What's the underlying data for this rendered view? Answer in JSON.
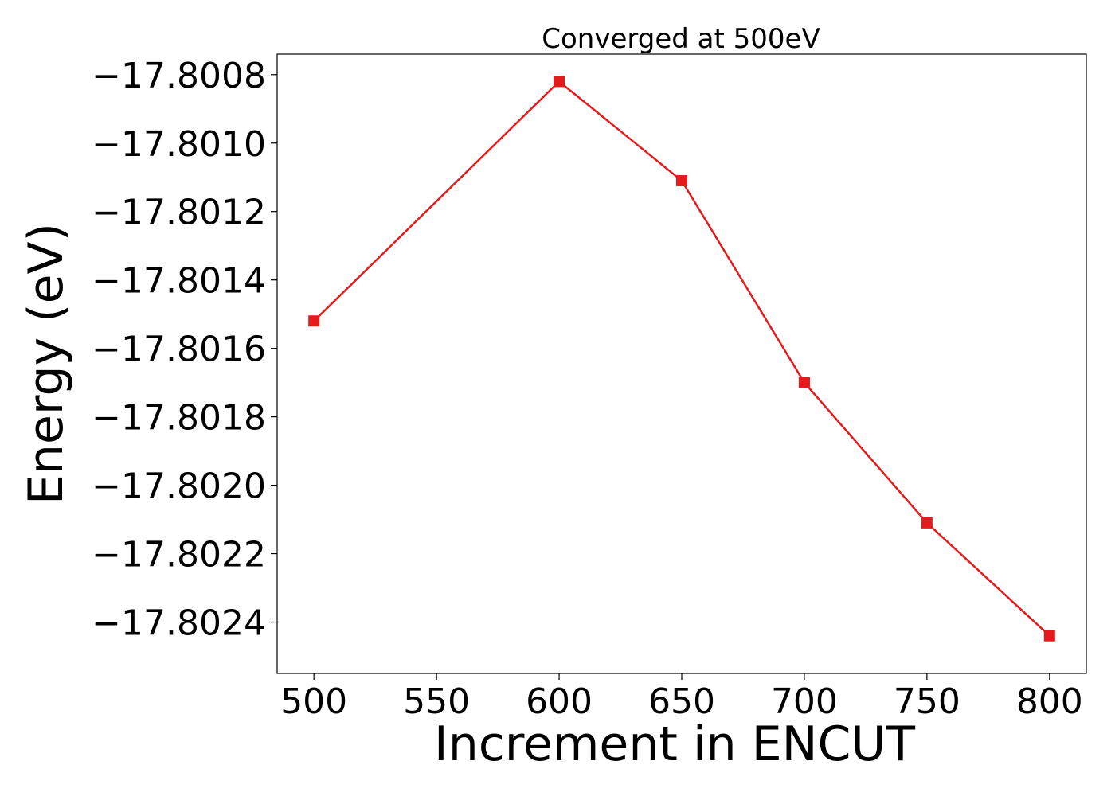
{
  "colors": {
    "series": "#e41a1c",
    "axis": "#000000",
    "background": "#ffffff"
  },
  "chart_data": {
    "type": "line",
    "title": "Converged at 500eV",
    "xlabel": "Increment in ENCUT",
    "ylabel": "Energy (eV)",
    "grid": false,
    "legend": "none",
    "marker": "square",
    "xlim": [
      485,
      815
    ],
    "ylim": [
      -17.80255,
      -17.80074
    ],
    "xticks": [
      500,
      550,
      600,
      650,
      700,
      750,
      800
    ],
    "xtick_labels": [
      "500",
      "550",
      "600",
      "650",
      "700",
      "750",
      "800"
    ],
    "yticks": [
      -17.8008,
      -17.801,
      -17.8012,
      -17.8014,
      -17.8016,
      -17.8018,
      -17.802,
      -17.8022,
      -17.8024
    ],
    "ytick_labels": [
      "−17.8008",
      "−17.8010",
      "−17.8012",
      "−17.8014",
      "−17.8016",
      "−17.8018",
      "−17.8020",
      "−17.8022",
      "−17.8024"
    ],
    "x": [
      500,
      600,
      650,
      700,
      750,
      800
    ],
    "series": [
      {
        "values": [
          -17.80152,
          -17.80082,
          -17.80111,
          -17.8017,
          -17.80211,
          -17.80244
        ]
      }
    ]
  }
}
